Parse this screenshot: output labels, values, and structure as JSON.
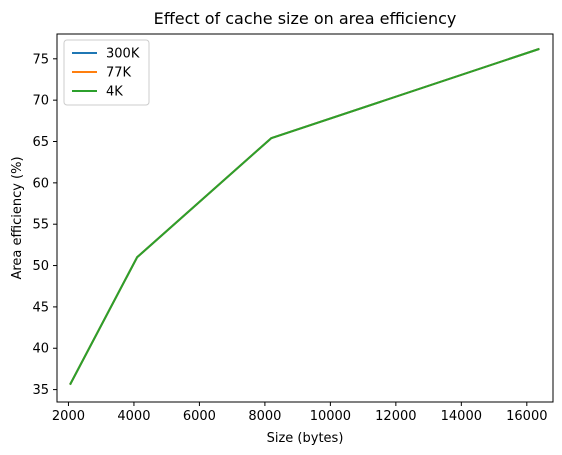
{
  "chart_data": {
    "type": "line",
    "title": "Effect of cache size on area efficiency",
    "xlabel": "Size (bytes)",
    "ylabel": "Area efficiency (%)",
    "xlim": [
      1650,
      16800
    ],
    "ylim": [
      33.5,
      78.0
    ],
    "xticks": [
      2000,
      4000,
      6000,
      8000,
      10000,
      12000,
      14000,
      16000
    ],
    "yticks": [
      35,
      40,
      45,
      50,
      55,
      60,
      65,
      70,
      75
    ],
    "grid": false,
    "legend_position": "top-left",
    "series": [
      {
        "name": "300K",
        "color": "#1f77b4",
        "x": [
          2048,
          4096,
          8192,
          16384
        ],
        "y": [
          35.6,
          51.0,
          65.4,
          76.2
        ]
      },
      {
        "name": "77K",
        "color": "#ff7f0e",
        "x": [
          2048,
          4096,
          8192,
          16384
        ],
        "y": [
          35.6,
          51.0,
          65.4,
          76.2
        ]
      },
      {
        "name": "4K",
        "color": "#2ca02c",
        "x": [
          2048,
          4096,
          8192,
          16384
        ],
        "y": [
          35.6,
          51.0,
          65.4,
          76.2
        ]
      }
    ]
  }
}
